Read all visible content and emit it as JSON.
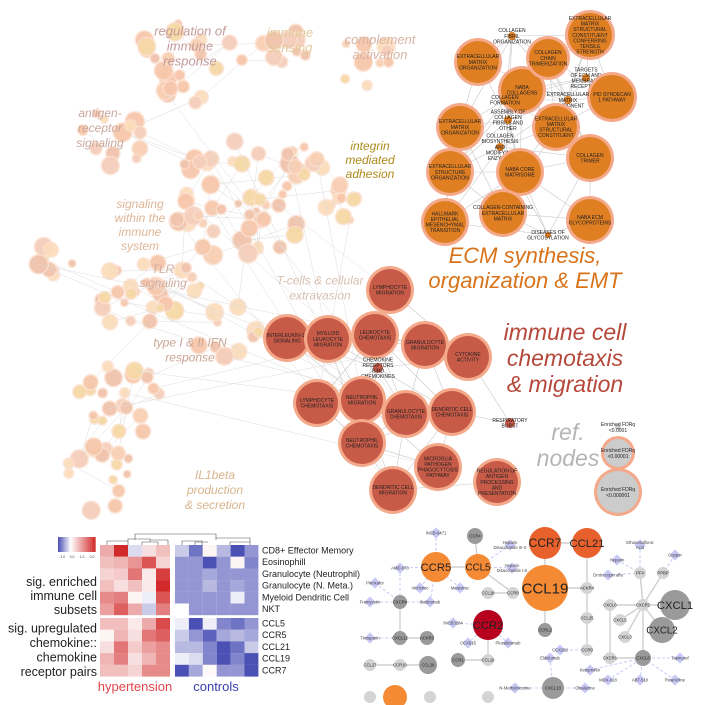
{
  "network": {
    "cluster_labels": [
      {
        "lines": [
          "regulation of",
          "immune",
          "response"
        ],
        "color": "#c49a9a"
      },
      {
        "lines": [
          "immune",
          "sensing"
        ],
        "color": "#e3c99a"
      },
      {
        "lines": [
          "complement",
          "activation"
        ],
        "color": "#d8b3a3"
      },
      {
        "lines": [
          "antigen-",
          "receptor",
          "signaling"
        ],
        "color": "#c9a89e"
      },
      {
        "lines": [
          "integrin",
          "mediated",
          "adhesion"
        ],
        "color": "#b08a1c"
      },
      {
        "lines": [
          "signaling",
          "within the",
          "immune",
          "system"
        ],
        "color": "#dfb597"
      },
      {
        "lines": [
          "TLR",
          "signaling"
        ],
        "color": "#d3ad9f"
      },
      {
        "lines": [
          "T-cells & cellular",
          "extravasion"
        ],
        "color": "#d9c0b0"
      },
      {
        "lines": [
          "type I & II IFN",
          "response"
        ],
        "color": "#c9a594"
      },
      {
        "lines": [
          "IL1beta",
          "production",
          "& secretion"
        ],
        "color": "#d8b48a"
      },
      {
        "lines": [
          "ECM synthesis,",
          "organization & EMT"
        ],
        "color": "#d9731a"
      },
      {
        "lines": [
          "immune cell",
          "chemotaxis",
          "& migration"
        ],
        "color": "#b5483a"
      },
      {
        "lines": [
          "ref.",
          "nodes"
        ],
        "color": "#b5b5b5"
      }
    ],
    "ecm_nodes": [
      {
        "lines": [
          "EXTRACELLULAR",
          "MATRIX",
          "ORGANIZATION"
        ]
      },
      {
        "lines": [
          "NABA",
          "COLLAGENS"
        ]
      },
      {
        "lines": [
          "COLLAGEN",
          "CHAIN",
          "TRIMERIZATION"
        ]
      },
      {
        "lines": [
          "COLLAGEN",
          "FIBRIL",
          "ORGANIZATION"
        ]
      },
      {
        "lines": [
          "EXTRACELLULAR",
          "MATRIX",
          "STRUCTURAL",
          "CONSTITUENT",
          "CONFERRING",
          "TENSILE",
          "STRENGTH"
        ]
      },
      {
        "lines": [
          "TARGETS",
          "OF ECM AND",
          "MEMBRANE",
          "RECEPTORS"
        ]
      },
      {
        "lines": [
          "PID SYNDECAN",
          "1 PATHWAY"
        ]
      },
      {
        "lines": [
          "EXTRACELLULAR",
          "MATRIX",
          "COMPONENT"
        ]
      },
      {
        "lines": [
          "EXTRACELLULAR",
          "MATRIX",
          "ORGANIZATION"
        ]
      },
      {
        "lines": [
          "EXTRACELLULAR",
          "MATRIX",
          "STRUCTURAL",
          "CONSTITUENT"
        ]
      },
      {
        "lines": [
          "COLLAGEN",
          "FORMATION"
        ]
      },
      {
        "lines": [
          "ASSEMBLY OF",
          "COLLAGEN",
          "FIBRILS AND",
          "OTHER"
        ]
      },
      {
        "lines": [
          "COLLAGEN",
          "BIOSYNTHESIS",
          "AND",
          "MODIFYING",
          "ENZYMES"
        ]
      },
      {
        "lines": [
          "COLLAGEN",
          "TRIMER"
        ]
      },
      {
        "lines": [
          "EXTRACELLULAR",
          "STRUCTURE",
          "ORGANIZATION"
        ]
      },
      {
        "lines": [
          "NABA CORE",
          "MATRISOME"
        ]
      },
      {
        "lines": [
          "HALLMARK",
          "EPITHELIAL",
          "MESENCHYMAL",
          "TRANSITION"
        ]
      },
      {
        "lines": [
          "COLLAGEN-CONTAINING",
          "EXTRACELLULAR",
          "MATRIX"
        ]
      },
      {
        "lines": [
          "NABA ECM",
          "GLYCOPROTEINS"
        ]
      },
      {
        "lines": [
          "DISEASES OF",
          "GLYCOSYLATION"
        ]
      }
    ],
    "immune_nodes": [
      {
        "lines": [
          "LYMPHOCYTE",
          "MIGRATION"
        ]
      },
      {
        "lines": [
          "INTERLEUKIN-10",
          "SIGNALING"
        ]
      },
      {
        "lines": [
          "MYELOID",
          "LEUKOCYTE",
          "MIGRATION"
        ]
      },
      {
        "lines": [
          "LEUKOCYTE",
          "CHEMOTAXIS"
        ]
      },
      {
        "lines": [
          "GRANULOCYTE",
          "MIGRATION"
        ]
      },
      {
        "lines": [
          "CYTOKINE",
          "ACTIVITY"
        ]
      },
      {
        "lines": [
          "CHEMOKINE",
          "RECEPTORS",
          "BIND",
          "CHEMOKINES"
        ]
      },
      {
        "lines": [
          "LYMPHOCYTE",
          "CHEMOTAXIS"
        ]
      },
      {
        "lines": [
          "NEUTROPHIL",
          "MIGRATION"
        ]
      },
      {
        "lines": [
          "GRANULOCYTE",
          "CHEMOTAXIS"
        ]
      },
      {
        "lines": [
          "DENDRITIC CELL",
          "CHEMOTAXIS"
        ]
      },
      {
        "lines": [
          "RESPIRATORY",
          "BURST"
        ]
      },
      {
        "lines": [
          "NEUTROPHIL",
          "CHEMOTAXIS"
        ]
      },
      {
        "lines": [
          "MICROGLIA",
          "PATHOGEN",
          "PHAGOCYTOSIS",
          "PATHWAY"
        ]
      },
      {
        "lines": [
          "DENDRITIC CELL",
          "MIGRATION"
        ]
      },
      {
        "lines": [
          "REGULATION OF",
          "ANTIGEN",
          "PROCESSING",
          "AND",
          "PRESENTATION"
        ]
      }
    ],
    "ref_nodes": [
      {
        "lines": [
          "Enriched FDRq",
          "<0.0001"
        ]
      },
      {
        "lines": [
          "Enriched FDRq",
          "<0.00001"
        ]
      },
      {
        "lines": [
          "Enriched FDRq",
          "<0.000001"
        ]
      }
    ],
    "colors": {
      "ecm_fill": "#e07f22",
      "immune_fill": "#c85a48",
      "ring": "#f4a98a",
      "ref_fill": "#cccccc"
    }
  },
  "heatmap": {
    "colorbar_ticks": [
      "-1.0",
      "0.0",
      "1.0",
      "2.0"
    ],
    "color_min": "#4b50b4",
    "color_mid": "#ffffff",
    "color_max": "#d22a2a",
    "range": [
      -1.0,
      2.0
    ],
    "section_labels": [
      [
        "sig. enriched",
        "immune cell",
        "subsets"
      ],
      [
        "sig. upregulated",
        "chemokine::",
        "chemokine",
        "receptor pairs"
      ]
    ],
    "groups": [
      {
        "label": "hypertension",
        "color": "#e0454a"
      },
      {
        "label": "controls",
        "color": "#3a3fb0"
      }
    ],
    "rows": [
      {
        "label": "CD8+ Effector Memory",
        "hypertension": [
          0.8,
          2.0,
          -0.2,
          0.3,
          0.6
        ],
        "controls": [
          -0.3,
          -0.8,
          0.1,
          -0.4,
          -1.0,
          -0.6
        ]
      },
      {
        "label": "Eosinophill",
        "hypertension": [
          0.6,
          0.7,
          1.0,
          1.6,
          0.4
        ],
        "controls": [
          -0.6,
          -0.6,
          -1.0,
          -0.6,
          0.1,
          -0.7
        ]
      },
      {
        "label": "Granulocyte (Neutrophil)",
        "hypertension": [
          0.4,
          0.5,
          1.3,
          0.2,
          1.8
        ],
        "controls": [
          -0.6,
          -0.6,
          -0.5,
          -0.6,
          -0.6,
          -0.6
        ]
      },
      {
        "label": "Granulocyte (N. Meta.)",
        "hypertension": [
          0.6,
          0.3,
          0.6,
          0.2,
          2.0
        ],
        "controls": [
          -0.6,
          -0.6,
          -0.4,
          -0.6,
          -0.5,
          -0.6
        ]
      },
      {
        "label": "Myeloid Dendritic Cell",
        "hypertension": [
          1.1,
          1.2,
          0.1,
          -0.1,
          1.6
        ],
        "controls": [
          -0.6,
          -0.6,
          -0.6,
          -0.6,
          -0.1,
          -0.6
        ]
      },
      {
        "label": "NKT",
        "hypertension": [
          0.9,
          1.5,
          0.8,
          -0.3,
          1.2
        ],
        "controls": [
          0.0,
          -0.6,
          -0.6,
          -0.6,
          -0.6,
          -0.6
        ]
      },
      {
        "label": "CCL5",
        "hypertension": [
          0.6,
          0.6,
          0.2,
          0.8,
          1.7
        ],
        "controls": [
          -0.1,
          -1.2,
          -0.1,
          -0.7,
          -0.8,
          -0.6
        ]
      },
      {
        "label": "CCR5",
        "hypertension": [
          0.1,
          0.7,
          0.3,
          1.3,
          1.5
        ],
        "controls": [
          -0.3,
          -0.6,
          -0.9,
          -0.5,
          -0.4,
          -0.5
        ]
      },
      {
        "label": "CCL21",
        "hypertension": [
          0.3,
          1.3,
          0.5,
          0.9,
          1.1
        ],
        "controls": [
          -0.4,
          -0.4,
          -0.7,
          -1.0,
          -0.8,
          -0.3
        ]
      },
      {
        "label": "CCL19",
        "hypertension": [
          0.7,
          1.2,
          0.3,
          0.7,
          1.1
        ],
        "controls": [
          -0.1,
          -0.2,
          -0.7,
          -1.0,
          -0.7,
          -1.1
        ]
      },
      {
        "label": "CCR7",
        "hypertension": [
          0.6,
          0.6,
          0.4,
          1.1,
          1.1
        ],
        "controls": [
          -1.0,
          -0.5,
          0.05,
          -0.6,
          -0.6,
          -1.0
        ]
      }
    ]
  },
  "chemokine_network": {
    "colors": {
      "orange": "#f58a35",
      "orange_red": "#e8602c",
      "red": "#b8001f",
      "gray": "#9a9a9a",
      "light": "#d4d4d4",
      "drug": "#c9c9f5"
    },
    "nodes": [
      {
        "label": "INCB-9471",
        "type": "drug"
      },
      {
        "label": "CCR4",
        "type": "gray"
      },
      {
        "label": "Heparin Disaccharide III-S",
        "type": "drug"
      },
      {
        "label": "CCR5",
        "type": "orange"
      },
      {
        "label": "CCL5",
        "type": "orange"
      },
      {
        "label": "Heparin Disaccharide I-S",
        "type": "drug"
      },
      {
        "label": "AMD-070",
        "type": "drug"
      },
      {
        "label": "Plerixafor",
        "type": "drug"
      },
      {
        "label": "Vicriviroc",
        "type": "drug"
      },
      {
        "label": "Maraviroc",
        "type": "drug"
      },
      {
        "label": "CXCR4",
        "type": "gray"
      },
      {
        "label": "Ibalizumab",
        "type": "drug"
      },
      {
        "label": "Framycetin",
        "type": "drug"
      },
      {
        "label": "CCL18",
        "type": "light"
      },
      {
        "label": "CCR8",
        "type": "light"
      },
      {
        "label": "CCR7",
        "type": "orange_red"
      },
      {
        "label": "CCL21",
        "type": "orange_red"
      },
      {
        "label": "CCL19",
        "type": "orange"
      },
      {
        "label": "ACKR4",
        "type": "light"
      },
      {
        "label": "CCR2",
        "type": "red"
      },
      {
        "label": "INCB3284",
        "type": "drug"
      },
      {
        "label": "CCX915",
        "type": "drug"
      },
      {
        "label": "Plozalizumab",
        "type": "drug"
      },
      {
        "label": "CCRL2",
        "type": "gray"
      },
      {
        "label": "CCL25",
        "type": "light"
      },
      {
        "label": "CCR9",
        "type": "light"
      },
      {
        "label": "CCX282",
        "type": "drug"
      },
      {
        "label": "Tinzaparin",
        "type": "drug"
      },
      {
        "label": "CXCL12",
        "type": "gray"
      },
      {
        "label": "ACKR3",
        "type": "gray"
      },
      {
        "label": "CCL27",
        "type": "light"
      },
      {
        "label": "CCR10",
        "type": "light"
      },
      {
        "label": "CCL28",
        "type": "gray"
      },
      {
        "label": "CCR1",
        "type": "gray"
      },
      {
        "label": "CCL16",
        "type": "light"
      },
      {
        "label": "Eldelumab",
        "type": "drug"
      },
      {
        "label": "CXCL10",
        "type": "gray"
      },
      {
        "label": "N-Methylnicotine",
        "type": "drug"
      },
      {
        "label": "Olsalazine",
        "type": "drug"
      },
      {
        "label": "Ethanesulfonic Acid",
        "type": "drug"
      },
      {
        "label": "Heparin",
        "type": "drug"
      },
      {
        "label": "Copper",
        "type": "drug"
      },
      {
        "label": "Drotrecogin alfa",
        "type": "drug"
      },
      {
        "label": "PF4",
        "type": "light"
      },
      {
        "label": "PPBP",
        "type": "light"
      },
      {
        "label": "CXCL6",
        "type": "light"
      },
      {
        "label": "CXCR2",
        "type": "light"
      },
      {
        "label": "CXCL1",
        "type": "gray"
      },
      {
        "label": "CXCL5",
        "type": "light"
      },
      {
        "label": "CXCL2",
        "type": "gray"
      },
      {
        "label": "CXCL3",
        "type": "light"
      },
      {
        "label": "CXCR1",
        "type": "light"
      },
      {
        "label": "CXCL8",
        "type": "gray"
      },
      {
        "label": "Tapinarof",
        "type": "drug"
      },
      {
        "label": "Ketoprofen",
        "type": "drug"
      },
      {
        "label": "MDX-018",
        "type": "drug"
      },
      {
        "label": "ABT-510",
        "type": "drug"
      },
      {
        "label": "Rivanicline",
        "type": "drug"
      }
    ]
  }
}
